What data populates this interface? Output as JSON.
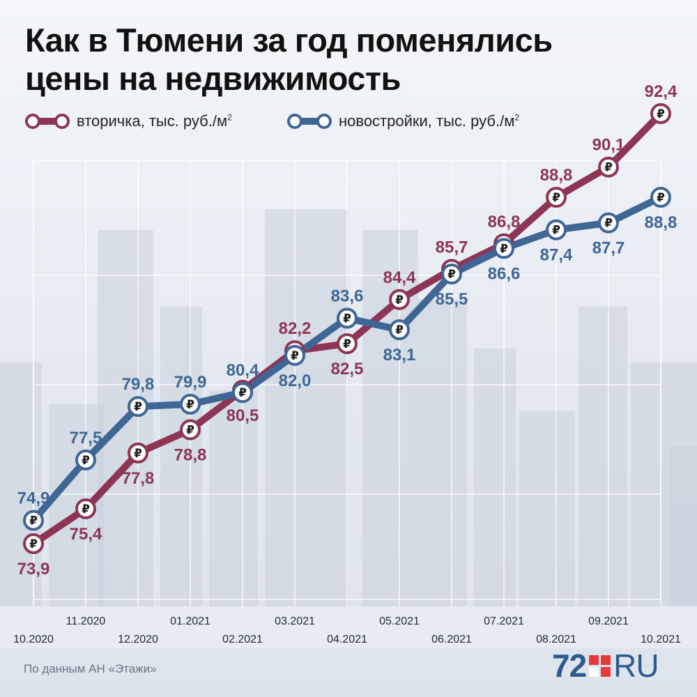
{
  "title_lines": [
    "Как в Тюмени за год поменялись",
    "цены на недвижимость"
  ],
  "legend": [
    {
      "text": "вторичка, тыс. руб./м",
      "sup": "2",
      "color": "#8e3556"
    },
    {
      "text": "новостройки, тыс. руб./м",
      "sup": "2",
      "color": "#3f6694"
    }
  ],
  "source": "По данным АН «Этажи»",
  "logo": {
    "num": "72",
    "ru": "RU"
  },
  "marker_symbol": "₽",
  "colors": {
    "secondary": "#8e3556",
    "new": "#3f6694",
    "grid": "#ffffff"
  },
  "chart_data": {
    "type": "line",
    "categories": [
      "10.2020",
      "11.2020",
      "12.2020",
      "01.2021",
      "02.2021",
      "03.2021",
      "04.2021",
      "05.2021",
      "06.2021",
      "07.2021",
      "08.2021",
      "09.2021",
      "10.2021"
    ],
    "series": [
      {
        "name": "вторичка, тыс. руб./м2",
        "color": "#8e3556",
        "values": [
          73.9,
          75.4,
          77.8,
          78.8,
          80.5,
          82.2,
          82.5,
          84.4,
          85.7,
          86.8,
          88.8,
          90.1,
          92.4
        ],
        "labels": [
          "73,9",
          "75,4",
          "77,8",
          "78,8",
          "80,5",
          "82,2",
          "82,5",
          "84,4",
          "85,7",
          "86,8",
          "88,8",
          "90,1",
          "92,4"
        ],
        "label_sides": [
          "below",
          "below",
          "below",
          "below",
          "below",
          "above",
          "below",
          "above",
          "above",
          "above",
          "above",
          "above",
          "above"
        ]
      },
      {
        "name": "новостройки, тыс. руб./м2",
        "color": "#3f6694",
        "values": [
          74.9,
          77.5,
          79.8,
          79.9,
          80.4,
          82.0,
          83.6,
          83.1,
          85.5,
          86.6,
          87.4,
          87.7,
          88.8
        ],
        "labels": [
          "74,9",
          "77,5",
          "79,8",
          "79,9",
          "80,4",
          "82,0",
          "83,6",
          "83,1",
          "85,5",
          "86,6",
          "87,4",
          "87,7",
          "88,8"
        ],
        "label_sides": [
          "above",
          "above",
          "above",
          "above",
          "above",
          "below",
          "above",
          "below",
          "below",
          "below",
          "below",
          "below",
          "below"
        ]
      }
    ],
    "ylim": [
      71.5,
      92.4
    ],
    "grid": true
  }
}
